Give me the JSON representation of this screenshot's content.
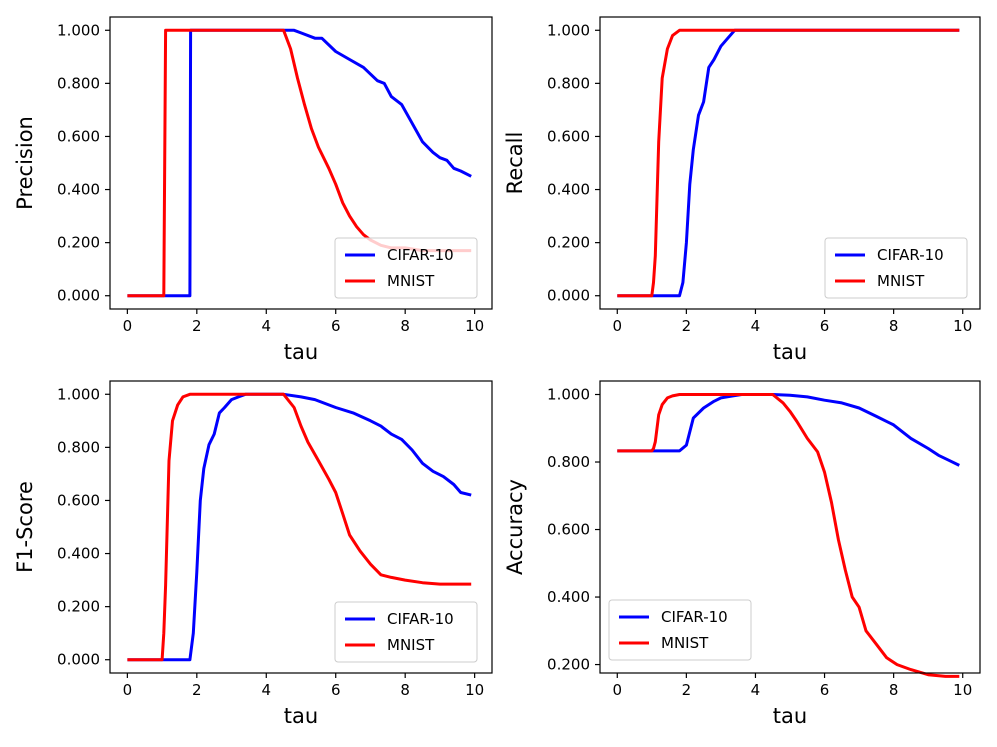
{
  "colors": {
    "cifar": "#0000ff",
    "mnist": "#ff0000",
    "axes": "#000000",
    "legend_border": "#cccccc"
  },
  "chart_data": [
    {
      "type": "line",
      "title": "",
      "xlabel": "tau",
      "ylabel": "Precision",
      "xlim": [
        -0.5,
        10.5
      ],
      "ylim": [
        -0.05,
        1.05
      ],
      "xticks": [
        "0",
        "2",
        "4",
        "6",
        "8",
        "10"
      ],
      "yticks": [
        "0.000",
        "0.200",
        "0.400",
        "0.600",
        "0.800",
        "1.000"
      ],
      "legend": "lower right",
      "grid": false,
      "series": [
        {
          "name": "CIFAR-10",
          "color": "#0000ff",
          "x": [
            0,
            1.8,
            1.82,
            1.9,
            4.5,
            4.8,
            5.0,
            5.4,
            5.6,
            6.0,
            6.4,
            6.8,
            7.2,
            7.4,
            7.6,
            7.9,
            8.2,
            8.5,
            8.8,
            9.0,
            9.2,
            9.4,
            9.6,
            9.9
          ],
          "y": [
            0,
            0,
            1.0,
            1.0,
            1.0,
            1.0,
            0.99,
            0.97,
            0.97,
            0.92,
            0.89,
            0.86,
            0.81,
            0.8,
            0.75,
            0.72,
            0.65,
            0.58,
            0.54,
            0.52,
            0.51,
            0.48,
            0.47,
            0.45
          ]
        },
        {
          "name": "MNIST",
          "color": "#ff0000",
          "x": [
            0,
            1.05,
            1.1,
            4.5,
            4.7,
            4.9,
            5.1,
            5.3,
            5.5,
            5.8,
            6.0,
            6.2,
            6.4,
            6.6,
            6.8,
            7.0,
            7.3,
            7.6,
            8.0,
            8.5,
            9.0,
            9.5,
            9.9
          ],
          "y": [
            0,
            0,
            1.0,
            1.0,
            0.93,
            0.82,
            0.72,
            0.63,
            0.56,
            0.48,
            0.42,
            0.35,
            0.3,
            0.26,
            0.23,
            0.21,
            0.19,
            0.18,
            0.18,
            0.17,
            0.17,
            0.17,
            0.17
          ]
        }
      ]
    },
    {
      "type": "line",
      "title": "",
      "xlabel": "tau",
      "ylabel": "Recall",
      "xlim": [
        -0.5,
        10.5
      ],
      "ylim": [
        -0.05,
        1.05
      ],
      "xticks": [
        "0",
        "2",
        "4",
        "6",
        "8",
        "10"
      ],
      "yticks": [
        "0.000",
        "0.200",
        "0.400",
        "0.600",
        "0.800",
        "1.000"
      ],
      "legend": "lower right",
      "grid": false,
      "series": [
        {
          "name": "CIFAR-10",
          "color": "#0000ff",
          "x": [
            0,
            1.8,
            1.9,
            2.0,
            2.1,
            2.2,
            2.35,
            2.5,
            2.65,
            2.8,
            3.0,
            3.2,
            3.4,
            9.9
          ],
          "y": [
            0,
            0,
            0.05,
            0.2,
            0.42,
            0.55,
            0.68,
            0.73,
            0.86,
            0.89,
            0.94,
            0.97,
            1.0,
            1.0
          ]
        },
        {
          "name": "MNIST",
          "color": "#ff0000",
          "x": [
            0,
            1.0,
            1.05,
            1.1,
            1.2,
            1.3,
            1.45,
            1.6,
            1.8,
            2.0,
            9.9
          ],
          "y": [
            0,
            0,
            0.05,
            0.15,
            0.58,
            0.82,
            0.93,
            0.98,
            1.0,
            1.0,
            1.0
          ]
        }
      ]
    },
    {
      "type": "line",
      "title": "",
      "xlabel": "tau",
      "ylabel": "F1-Score",
      "xlim": [
        -0.5,
        10.5
      ],
      "ylim": [
        -0.05,
        1.05
      ],
      "xticks": [
        "0",
        "2",
        "4",
        "6",
        "8",
        "10"
      ],
      "yticks": [
        "0.000",
        "0.200",
        "0.400",
        "0.600",
        "0.800",
        "1.000"
      ],
      "legend": "lower right",
      "grid": false,
      "series": [
        {
          "name": "CIFAR-10",
          "color": "#0000ff",
          "x": [
            0,
            1.8,
            1.9,
            2.0,
            2.1,
            2.2,
            2.35,
            2.5,
            2.65,
            2.8,
            3.0,
            3.2,
            3.4,
            4.5,
            5.0,
            5.4,
            6.0,
            6.5,
            7.0,
            7.3,
            7.6,
            7.9,
            8.2,
            8.5,
            8.8,
            9.1,
            9.4,
            9.6,
            9.9
          ],
          "y": [
            0,
            0,
            0.1,
            0.33,
            0.6,
            0.72,
            0.81,
            0.85,
            0.93,
            0.95,
            0.98,
            0.99,
            1.0,
            1.0,
            0.99,
            0.98,
            0.95,
            0.93,
            0.9,
            0.88,
            0.85,
            0.83,
            0.79,
            0.74,
            0.71,
            0.69,
            0.66,
            0.63,
            0.62
          ]
        },
        {
          "name": "MNIST",
          "color": "#ff0000",
          "x": [
            0,
            1.0,
            1.05,
            1.1,
            1.2,
            1.3,
            1.45,
            1.6,
            1.8,
            2.0,
            4.5,
            4.8,
            5.0,
            5.2,
            5.5,
            5.8,
            6.0,
            6.2,
            6.4,
            6.7,
            7.0,
            7.3,
            7.6,
            8.0,
            8.5,
            9.0,
            9.5,
            9.9
          ],
          "y": [
            0,
            0,
            0.1,
            0.28,
            0.75,
            0.9,
            0.96,
            0.99,
            1.0,
            1.0,
            1.0,
            0.95,
            0.88,
            0.82,
            0.75,
            0.68,
            0.63,
            0.55,
            0.47,
            0.41,
            0.36,
            0.32,
            0.31,
            0.3,
            0.29,
            0.285,
            0.285,
            0.285
          ]
        }
      ]
    },
    {
      "type": "line",
      "title": "",
      "xlabel": "tau",
      "ylabel": "Accuracy",
      "xlim": [
        -0.5,
        10.5
      ],
      "ylim": [
        0.175,
        1.04
      ],
      "xticks": [
        "0",
        "2",
        "4",
        "6",
        "8",
        "10"
      ],
      "yticks": [
        "0.200",
        "0.400",
        "0.600",
        "0.800",
        "1.000"
      ],
      "legend": "lower left",
      "grid": false,
      "series": [
        {
          "name": "CIFAR-10",
          "color": "#0000ff",
          "x": [
            0,
            1.8,
            2.0,
            2.2,
            2.5,
            2.8,
            3.0,
            3.3,
            3.6,
            4.5,
            5.0,
            5.5,
            6.0,
            6.5,
            7.0,
            7.5,
            8.0,
            8.5,
            9.0,
            9.3,
            9.6,
            9.9
          ],
          "y": [
            0.833,
            0.833,
            0.85,
            0.93,
            0.96,
            0.98,
            0.99,
            0.995,
            1.0,
            1.0,
            0.998,
            0.993,
            0.983,
            0.975,
            0.96,
            0.935,
            0.91,
            0.87,
            0.84,
            0.82,
            0.805,
            0.79
          ]
        },
        {
          "name": "MNIST",
          "color": "#ff0000",
          "x": [
            0,
            1.0,
            1.05,
            1.1,
            1.2,
            1.3,
            1.45,
            1.6,
            1.8,
            2.0,
            4.5,
            4.8,
            5.0,
            5.2,
            5.5,
            5.8,
            6.0,
            6.2,
            6.4,
            6.6,
            6.8,
            7.0,
            7.2,
            7.5,
            7.8,
            8.1,
            8.5,
            9.0,
            9.5,
            9.9
          ],
          "y": [
            0.833,
            0.833,
            0.84,
            0.86,
            0.94,
            0.97,
            0.99,
            0.996,
            1.0,
            1.0,
            1.0,
            0.975,
            0.95,
            0.92,
            0.87,
            0.83,
            0.77,
            0.68,
            0.57,
            0.48,
            0.4,
            0.37,
            0.3,
            0.26,
            0.22,
            0.2,
            0.185,
            0.17,
            0.165,
            0.165
          ]
        }
      ]
    }
  ]
}
